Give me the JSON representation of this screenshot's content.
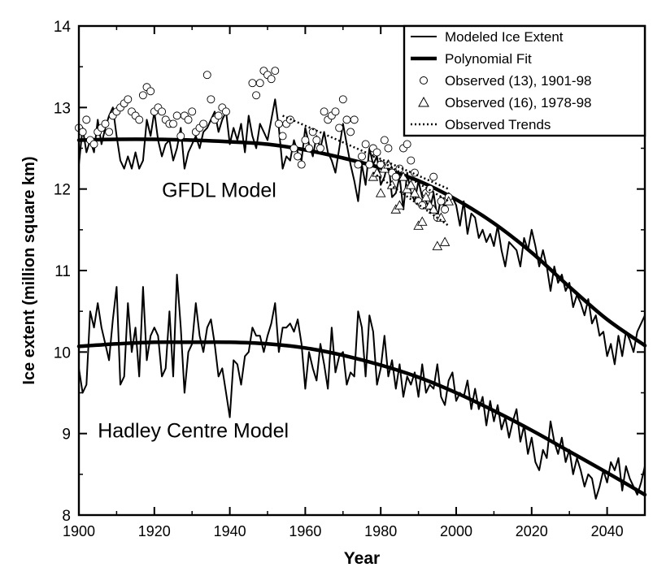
{
  "chart_data": {
    "type": "line",
    "xlabel": "Year",
    "ylabel": "Ice extent (million square km)",
    "xlim": [
      1900,
      2050
    ],
    "ylim": [
      8,
      14
    ],
    "xticks": [
      1900,
      1920,
      1940,
      1960,
      1980,
      2000,
      2020,
      2040
    ],
    "yticks": [
      8,
      9,
      10,
      11,
      12,
      13,
      14
    ],
    "grid": false,
    "legend_position": "top-right",
    "legend": [
      {
        "label": "Modeled Ice Extent",
        "style": "thin-line"
      },
      {
        "label": "Polynomial Fit",
        "style": "thick-line"
      },
      {
        "label": "Observed (13), 1901-98",
        "style": "circle"
      },
      {
        "label": "Observed (16), 1978-98",
        "style": "triangle"
      },
      {
        "label": "Observed Trends",
        "style": "dotted-line"
      }
    ],
    "annotations": [
      {
        "text": "GFDL Model",
        "x": 1922,
        "y": 11.9
      },
      {
        "text": "Hadley Centre Model",
        "x": 1905,
        "y": 8.95
      }
    ],
    "series": [
      {
        "type": "line",
        "role": "modeled",
        "x": [
          1900,
          1901,
          1902,
          1903,
          1904,
          1905,
          1906,
          1907,
          1908,
          1909,
          1910,
          1911,
          1912,
          1913,
          1914,
          1915,
          1916,
          1917,
          1918,
          1919,
          1920,
          1921,
          1922,
          1923,
          1924,
          1925,
          1926,
          1927,
          1928,
          1929,
          1930,
          1931,
          1932,
          1933,
          1934,
          1935,
          1936,
          1937,
          1938,
          1939,
          1940,
          1941,
          1942,
          1943,
          1944,
          1945,
          1946,
          1947,
          1948,
          1949,
          1950,
          1951,
          1952,
          1953,
          1954,
          1955,
          1956,
          1957,
          1958,
          1959,
          1960,
          1961,
          1962,
          1963,
          1964,
          1965,
          1966,
          1967,
          1968,
          1969,
          1970,
          1971,
          1972,
          1973,
          1974,
          1975,
          1976,
          1977,
          1978,
          1979,
          1980,
          1981,
          1982,
          1983,
          1984,
          1985,
          1986,
          1987,
          1988,
          1989,
          1990,
          1991,
          1992,
          1993,
          1994,
          1995,
          1996,
          1997,
          1998,
          1999,
          2000,
          2001,
          2002,
          2003,
          2004,
          2005,
          2006,
          2007,
          2008,
          2009,
          2010,
          2011,
          2012,
          2013,
          2014,
          2015,
          2016,
          2017,
          2018,
          2019,
          2020,
          2021,
          2022,
          2023,
          2024,
          2025,
          2026,
          2027,
          2028,
          2029,
          2030,
          2031,
          2032,
          2033,
          2034,
          2035,
          2036,
          2037,
          2038,
          2039,
          2040,
          2041,
          2042,
          2043,
          2044,
          2045,
          2046,
          2047,
          2048,
          2049,
          2050
        ],
        "y": [
          12.3,
          12.75,
          12.45,
          12.6,
          12.45,
          12.85,
          12.55,
          12.75,
          12.9,
          13.0,
          12.65,
          12.35,
          12.25,
          12.4,
          12.25,
          12.45,
          12.25,
          12.35,
          12.85,
          12.65,
          12.95,
          12.6,
          12.4,
          12.55,
          12.6,
          12.35,
          12.5,
          12.75,
          12.25,
          12.45,
          12.55,
          12.65,
          12.5,
          12.7,
          12.75,
          12.85,
          12.95,
          12.7,
          12.85,
          12.95,
          12.55,
          12.75,
          12.6,
          12.8,
          12.45,
          12.9,
          12.65,
          12.5,
          12.8,
          12.7,
          12.6,
          12.85,
          13.1,
          12.75,
          12.25,
          12.4,
          12.35,
          12.6,
          12.45,
          12.35,
          12.75,
          12.55,
          12.4,
          12.65,
          12.5,
          12.7,
          12.45,
          12.35,
          12.2,
          12.5,
          12.8,
          12.55,
          12.3,
          12.1,
          11.85,
          12.3,
          12.05,
          12.5,
          12.3,
          12.4,
          12.05,
          12.15,
          12.35,
          11.9,
          11.95,
          12.15,
          11.75,
          12.2,
          11.95,
          11.85,
          12.1,
          11.9,
          11.85,
          11.75,
          11.95,
          11.65,
          11.9,
          11.75,
          11.95,
          11.9,
          11.8,
          11.55,
          11.85,
          11.45,
          11.7,
          11.65,
          11.4,
          11.5,
          11.35,
          11.45,
          11.3,
          11.55,
          11.25,
          11.05,
          11.35,
          11.3,
          11.25,
          11.05,
          11.4,
          11.25,
          11.5,
          11.3,
          11.05,
          11.25,
          11.05,
          10.75,
          11.05,
          10.85,
          10.95,
          10.75,
          10.85,
          10.55,
          10.7,
          10.6,
          10.45,
          10.65,
          10.35,
          10.45,
          10.2,
          10.25,
          9.95,
          10.1,
          9.85,
          10.2,
          9.95,
          10.25,
          10.15,
          10.0,
          10.25,
          10.35,
          10.45
        ]
      },
      {
        "type": "line",
        "role": "fit",
        "x": [
          1900,
          1910,
          1920,
          1930,
          1940,
          1950,
          1960,
          1970,
          1980,
          1990,
          2000,
          2010,
          2020,
          2030,
          2040,
          2050
        ],
        "y": [
          12.6,
          12.61,
          12.61,
          12.6,
          12.58,
          12.55,
          12.48,
          12.38,
          12.26,
          12.1,
          11.87,
          11.58,
          11.22,
          10.8,
          10.4,
          10.08
        ]
      },
      {
        "type": "line",
        "role": "modeled",
        "x": [
          1900,
          1901,
          1902,
          1903,
          1904,
          1905,
          1906,
          1907,
          1908,
          1909,
          1910,
          1911,
          1912,
          1913,
          1914,
          1915,
          1916,
          1917,
          1918,
          1919,
          1920,
          1921,
          1922,
          1923,
          1924,
          1925,
          1926,
          1927,
          1928,
          1929,
          1930,
          1931,
          1932,
          1933,
          1934,
          1935,
          1936,
          1937,
          1938,
          1939,
          1940,
          1941,
          1942,
          1943,
          1944,
          1945,
          1946,
          1947,
          1948,
          1949,
          1950,
          1951,
          1952,
          1953,
          1954,
          1955,
          1956,
          1957,
          1958,
          1959,
          1960,
          1961,
          1962,
          1963,
          1964,
          1965,
          1966,
          1967,
          1968,
          1969,
          1970,
          1971,
          1972,
          1973,
          1974,
          1975,
          1976,
          1977,
          1978,
          1979,
          1980,
          1981,
          1982,
          1983,
          1984,
          1985,
          1986,
          1987,
          1988,
          1989,
          1990,
          1991,
          1992,
          1993,
          1994,
          1995,
          1996,
          1997,
          1998,
          1999,
          2000,
          2001,
          2002,
          2003,
          2004,
          2005,
          2006,
          2007,
          2008,
          2009,
          2010,
          2011,
          2012,
          2013,
          2014,
          2015,
          2016,
          2017,
          2018,
          2019,
          2020,
          2021,
          2022,
          2023,
          2024,
          2025,
          2026,
          2027,
          2028,
          2029,
          2030,
          2031,
          2032,
          2033,
          2034,
          2035,
          2036,
          2037,
          2038,
          2039,
          2040,
          2041,
          2042,
          2043,
          2044,
          2045,
          2046,
          2047,
          2048,
          2049,
          2050
        ],
        "y": [
          9.8,
          9.5,
          9.6,
          10.5,
          10.3,
          10.6,
          10.3,
          10.1,
          9.9,
          10.4,
          10.8,
          9.6,
          9.7,
          10.6,
          10.0,
          10.3,
          9.7,
          10.8,
          9.9,
          10.2,
          10.3,
          10.2,
          9.7,
          9.8,
          10.5,
          9.7,
          10.95,
          10.3,
          9.5,
          10.0,
          10.1,
          10.6,
          10.2,
          10.0,
          10.3,
          10.4,
          10.1,
          9.7,
          9.8,
          9.5,
          9.2,
          9.9,
          9.85,
          9.6,
          9.95,
          10.0,
          10.3,
          10.2,
          10.2,
          10.0,
          10.2,
          10.35,
          10.6,
          10.0,
          10.3,
          10.3,
          10.35,
          10.25,
          10.4,
          10.1,
          9.55,
          10.0,
          9.8,
          9.65,
          10.1,
          9.85,
          9.55,
          10.3,
          9.75,
          9.95,
          10.0,
          9.6,
          9.75,
          9.7,
          10.5,
          10.3,
          9.7,
          10.45,
          10.25,
          9.6,
          9.8,
          10.2,
          9.7,
          9.9,
          9.55,
          9.85,
          9.45,
          9.7,
          9.6,
          9.75,
          9.45,
          9.85,
          9.5,
          9.6,
          9.55,
          9.85,
          9.45,
          9.35,
          9.65,
          9.75,
          9.4,
          9.5,
          9.45,
          9.65,
          9.3,
          9.55,
          9.3,
          9.45,
          9.1,
          9.4,
          9.15,
          9.35,
          9.05,
          9.2,
          8.95,
          9.15,
          9.3,
          8.9,
          9.1,
          8.75,
          8.95,
          8.65,
          8.55,
          8.8,
          8.7,
          9.15,
          8.9,
          8.75,
          8.95,
          8.65,
          8.8,
          8.5,
          8.7,
          8.55,
          8.35,
          8.5,
          8.45,
          8.2,
          8.35,
          8.55,
          8.4,
          8.65,
          8.55,
          8.7,
          8.3,
          8.6,
          8.45,
          8.35,
          8.25,
          8.4,
          8.6
        ]
      },
      {
        "type": "line",
        "role": "fit",
        "x": [
          1900,
          1910,
          1920,
          1930,
          1940,
          1950,
          1960,
          1970,
          1980,
          1990,
          2000,
          2010,
          2020,
          2030,
          2040,
          2050
        ],
        "y": [
          10.07,
          10.1,
          10.12,
          10.12,
          10.12,
          10.1,
          10.05,
          9.96,
          9.84,
          9.69,
          9.5,
          9.28,
          9.04,
          8.78,
          8.52,
          8.25
        ]
      },
      {
        "type": "scatter",
        "marker": "circle",
        "x": [
          1900,
          1901,
          1902,
          1903,
          1904,
          1905,
          1906,
          1907,
          1908,
          1909,
          1910,
          1911,
          1912,
          1913,
          1914,
          1915,
          1916,
          1917,
          1918,
          1919,
          1920,
          1921,
          1922,
          1923,
          1924,
          1925,
          1926,
          1927,
          1928,
          1929,
          1930,
          1931,
          1932,
          1933,
          1934,
          1935,
          1936,
          1937,
          1938,
          1939,
          1946,
          1947,
          1948,
          1949,
          1950,
          1951,
          1952,
          1953,
          1954,
          1955,
          1956,
          1957,
          1958,
          1959,
          1960,
          1961,
          1962,
          1963,
          1964,
          1965,
          1966,
          1967,
          1968,
          1969,
          1970,
          1971,
          1972,
          1973,
          1974,
          1975,
          1976,
          1977,
          1978,
          1979,
          1980,
          1981,
          1982,
          1983,
          1984,
          1985,
          1986,
          1987,
          1988,
          1989,
          1990,
          1991,
          1992,
          1993,
          1994,
          1995,
          1996,
          1997,
          1998
        ],
        "y": [
          12.75,
          12.7,
          12.85,
          12.6,
          12.55,
          12.7,
          12.75,
          12.8,
          12.7,
          12.9,
          12.95,
          13.0,
          13.05,
          13.1,
          12.95,
          12.9,
          12.85,
          13.15,
          13.25,
          13.2,
          12.95,
          13.0,
          12.95,
          12.85,
          12.8,
          12.8,
          12.9,
          12.65,
          12.9,
          12.85,
          12.95,
          12.7,
          12.75,
          12.8,
          13.4,
          13.1,
          12.85,
          12.9,
          13.0,
          12.95,
          13.3,
          13.15,
          13.3,
          13.45,
          13.4,
          13.35,
          13.45,
          12.8,
          12.65,
          12.8,
          12.85,
          12.5,
          12.4,
          12.3,
          12.6,
          12.5,
          12.7,
          12.6,
          12.5,
          12.95,
          12.85,
          12.9,
          12.95,
          12.75,
          13.1,
          12.85,
          12.7,
          12.85,
          12.3,
          12.4,
          12.55,
          12.3,
          12.5,
          12.45,
          12.3,
          12.6,
          12.5,
          12.2,
          12.15,
          12.25,
          12.5,
          12.55,
          12.35,
          12.2,
          11.85,
          11.8,
          11.95,
          12.0,
          12.15,
          11.65,
          11.85,
          11.75,
          11.9
        ]
      },
      {
        "type": "scatter",
        "marker": "triangle",
        "x": [
          1978,
          1979,
          1980,
          1981,
          1982,
          1983,
          1984,
          1985,
          1986,
          1987,
          1988,
          1989,
          1990,
          1991,
          1992,
          1993,
          1994,
          1995,
          1996,
          1997,
          1998
        ],
        "y": [
          12.15,
          12.2,
          11.95,
          12.25,
          12.3,
          12.05,
          11.75,
          11.8,
          12.15,
          12.0,
          12.05,
          11.95,
          11.55,
          11.6,
          11.9,
          11.8,
          11.75,
          11.3,
          11.65,
          11.35,
          11.85
        ]
      },
      {
        "type": "line",
        "role": "trend",
        "x": [
          1954,
          1998
        ],
        "y": [
          12.9,
          12.0
        ]
      },
      {
        "type": "line",
        "role": "trend",
        "x": [
          1978,
          1998
        ],
        "y": [
          12.4,
          11.85
        ]
      },
      {
        "type": "line",
        "role": "trend",
        "x": [
          1978,
          1998
        ],
        "y": [
          12.2,
          11.55
        ]
      }
    ]
  }
}
